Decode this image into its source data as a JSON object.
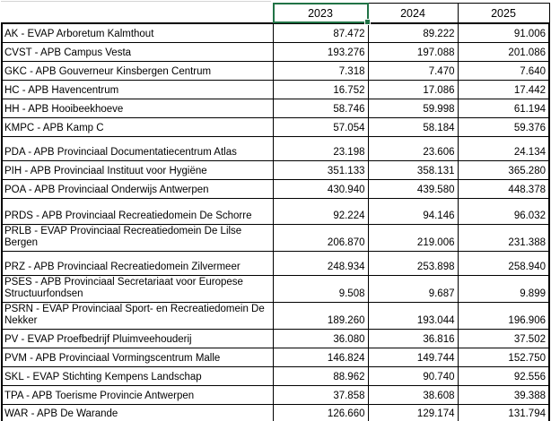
{
  "colors": {
    "selection_green": "#217346",
    "grid_border": "#000000",
    "faint_gridline": "#d4d4d4",
    "background": "#ffffff"
  },
  "table": {
    "corner_label": "",
    "columns": [
      "2023",
      "2024",
      "2025"
    ],
    "selected_header": "2023",
    "rows": [
      {
        "label": "AK - EVAP Arboretum Kalmthout",
        "values": [
          "87.472",
          "89.222",
          "91.006"
        ]
      },
      {
        "label": "CVST - APB Campus Vesta",
        "values": [
          "193.276",
          "197.088",
          "201.086"
        ]
      },
      {
        "label": "GKC - APB Gouverneur Kinsbergen Centrum",
        "values": [
          "7.318",
          "7.470",
          "7.640"
        ]
      },
      {
        "label": "HC - APB Havencentrum",
        "values": [
          "16.752",
          "17.086",
          "17.442"
        ]
      },
      {
        "label": "HH - APB Hooibeekhoeve",
        "values": [
          "58.746",
          "59.998",
          "61.194"
        ]
      },
      {
        "label": "KMPC - APB Kamp C",
        "values": [
          "57.054",
          "58.184",
          "59.376"
        ]
      },
      {
        "label": "PDA - APB Provinciaal Documentatiecentrum Atlas",
        "values": [
          "23.198",
          "23.606",
          "24.134"
        ]
      },
      {
        "label": "PIH - APB Provinciaal Instituut voor Hygiëne",
        "values": [
          "351.133",
          "358.131",
          "365.280"
        ]
      },
      {
        "label": "POA - APB Provinciaal Onderwijs Antwerpen",
        "values": [
          "430.940",
          "439.580",
          "448.378"
        ]
      },
      {
        "label": "PRDS - APB Provinciaal Recreatiedomein De Schorre",
        "values": [
          "92.224",
          "94.146",
          "96.032"
        ]
      },
      {
        "label": "PRLB - EVAP Provinciaal Recreatiedomein De Lilse Bergen",
        "values": [
          "206.870",
          "219.006",
          "231.388"
        ]
      },
      {
        "label": "PRZ - APB Provinciaal Recreatiedomein Zilvermeer",
        "values": [
          "248.934",
          "253.898",
          "258.940"
        ]
      },
      {
        "label": "PSES - APB Provinciaal Secretariaat voor Europese Structuurfondsen",
        "values": [
          "9.508",
          "9.687",
          "9.899"
        ]
      },
      {
        "label": "PSRN - EVAP Provinciaal Sport- en Recreatiedomein De Nekker",
        "values": [
          "189.260",
          "193.044",
          "196.906"
        ]
      },
      {
        "label": "PV - EVAP Proefbedrijf Pluimveehouderij",
        "values": [
          "36.080",
          "36.816",
          "37.502"
        ]
      },
      {
        "label": "PVM - APB Provinciaal Vormingscentrum Malle",
        "values": [
          "146.824",
          "149.744",
          "152.750"
        ]
      },
      {
        "label": "SKL - EVAP Stichting Kempens Landschap",
        "values": [
          "88.962",
          "90.740",
          "92.556"
        ]
      },
      {
        "label": "TPA - APB Toerisme Provincie Antwerpen",
        "values": [
          "37.858",
          "38.608",
          "39.388"
        ]
      },
      {
        "label": "WAR - APB De Warande",
        "values": [
          "126.660",
          "129.174",
          "131.794"
        ]
      }
    ]
  }
}
